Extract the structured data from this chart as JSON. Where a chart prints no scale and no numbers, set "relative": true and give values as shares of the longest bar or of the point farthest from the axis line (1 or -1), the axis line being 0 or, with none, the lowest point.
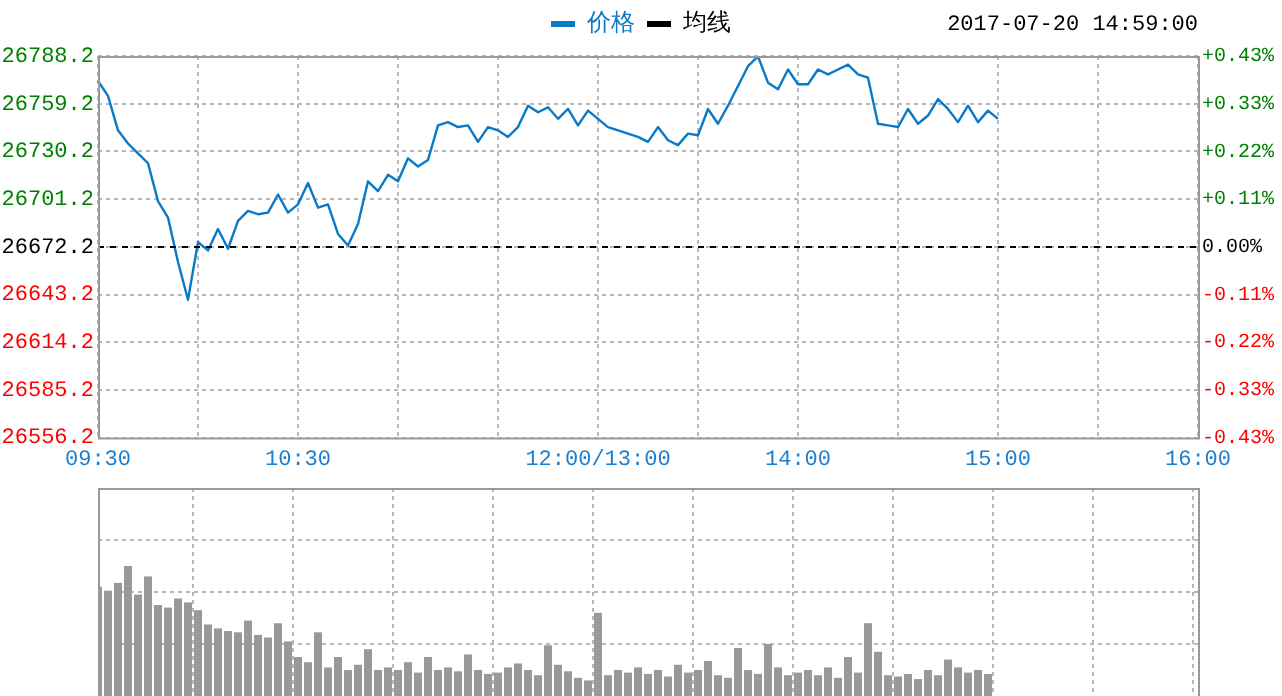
{
  "chart_data": [
    {
      "type": "line",
      "annotations": [
        "2017-07-20 14:59:00"
      ],
      "categories": [
        "09:30",
        null,
        null,
        null,
        null,
        null,
        null,
        null,
        null,
        null,
        null,
        null,
        null,
        null,
        null,
        null,
        null,
        null,
        null,
        null,
        "10:30",
        null,
        null,
        null,
        null,
        null,
        null,
        null,
        null,
        null,
        null,
        null,
        null,
        null,
        null,
        null,
        null,
        null,
        null,
        null,
        null,
        null,
        null,
        null,
        null,
        null,
        null,
        null,
        null,
        null,
        "12:00/13:00",
        null,
        null,
        null,
        null,
        null,
        null,
        null,
        null,
        null,
        null,
        null,
        null,
        null,
        null,
        null,
        null,
        null,
        null,
        null,
        "14:00",
        null,
        null,
        null,
        null,
        null,
        null,
        null,
        null,
        null,
        null,
        null,
        null,
        null,
        null,
        null,
        null,
        null,
        null,
        null,
        "15:00",
        null,
        null,
        null,
        null,
        null,
        null,
        null,
        null,
        null,
        null,
        null,
        null,
        null,
        null,
        null,
        null,
        null,
        null,
        null,
        "16:00"
      ],
      "series": [
        {
          "name": "价格",
          "color": "#0a7ac8",
          "values": [
            26773,
            26764,
            26743,
            26735,
            26729,
            26723,
            26700,
            26690,
            26663,
            26640,
            26675,
            26670,
            26683,
            26671,
            26688,
            26694,
            26692,
            26693,
            26704,
            26693,
            26698,
            26711,
            26696,
            26698,
            26680,
            26673,
            26686,
            26712,
            26706,
            26716,
            26712,
            26726,
            26721,
            26725,
            26746,
            26748,
            26745,
            26746,
            26736,
            26745,
            26743,
            26739,
            26745,
            26758,
            26754,
            26757,
            26750,
            26756,
            26746,
            26755,
            26750,
            26745,
            26743,
            26741,
            26739,
            26736,
            26745,
            26737,
            26734,
            26741,
            26740,
            26756,
            26747,
            26758,
            26770,
            26782,
            26788,
            26772,
            26768,
            26780,
            26771,
            26771,
            26780,
            26777,
            26780,
            26783,
            26777,
            26775,
            26747,
            26746,
            26745,
            26756,
            26747,
            26752,
            26762,
            26756,
            26748,
            26758,
            26748,
            26755,
            26750,
            null,
            null,
            null,
            null,
            null,
            null,
            null,
            null,
            null,
            null,
            null,
            null,
            null,
            null,
            null,
            null,
            null,
            null,
            null,
            null
          ]
        },
        {
          "name": "均线",
          "color": "#000000",
          "values": [
            null,
            null,
            null,
            null,
            null,
            null,
            null,
            null,
            null,
            null,
            null,
            null,
            null,
            null,
            null,
            null,
            null,
            null,
            null,
            null,
            null,
            null,
            null,
            null,
            null,
            null,
            null,
            null,
            null,
            null,
            null,
            null,
            null,
            null,
            null,
            null,
            null,
            null,
            null,
            null,
            null,
            null,
            null,
            null,
            null,
            null,
            null,
            null,
            null,
            null,
            null,
            null,
            null,
            null,
            null,
            null,
            null,
            null,
            null,
            null,
            null,
            null,
            null,
            null,
            null,
            null,
            null,
            null,
            null,
            null,
            null,
            null,
            null,
            null,
            null,
            null,
            null,
            null,
            null,
            null,
            null,
            null,
            null,
            null,
            null,
            null,
            null,
            null,
            null,
            null,
            null,
            null,
            null,
            null,
            null,
            null,
            null,
            null,
            null,
            null,
            null,
            null,
            null,
            null,
            null,
            null,
            null,
            null,
            null,
            null,
            null
          ]
        }
      ],
      "ylim": [
        26556.2,
        26788.2
      ],
      "yticks": [
        26556.2,
        26585.2,
        26614.2,
        26643.2,
        26672.2,
        26701.2,
        26730.2,
        26759.2,
        26788.2
      ],
      "y2lim": [
        -0.435,
        0.435
      ],
      "y2ticks": [
        {
          "value": -0.435,
          "label": "-0.43%"
        },
        {
          "value": -0.326,
          "label": "-0.33%"
        },
        {
          "value": -0.217,
          "label": "-0.22%"
        },
        {
          "value": -0.109,
          "label": "-0.11%"
        },
        {
          "value": 0,
          "label": "0.00%"
        },
        {
          "value": 0.109,
          "label": "+0.11%"
        },
        {
          "value": 0.217,
          "label": "+0.22%"
        },
        {
          "value": 0.326,
          "label": "+0.33%"
        },
        {
          "value": 0.435,
          "label": "+0.43%"
        }
      ],
      "ref_lines": [
        {
          "axis": "y",
          "value": 26672.2,
          "color": "#000000",
          "line_style": "dashed"
        }
      ],
      "grid": true,
      "legend": "top",
      "marker": "none",
      "line_style": "solid"
    },
    {
      "type": "bar",
      "relative": true,
      "color": "#999999",
      "categories": [
        null,
        null,
        null,
        null,
        null,
        null,
        null,
        null,
        null,
        null,
        null,
        null,
        null,
        null,
        null,
        null,
        null,
        null,
        null,
        null,
        null,
        null,
        null,
        null,
        null,
        null,
        null,
        null,
        null,
        null,
        null,
        null,
        null,
        null,
        null,
        null,
        null,
        null,
        null,
        null,
        null,
        null,
        null,
        null,
        null,
        null,
        null,
        null,
        null,
        null,
        null,
        null,
        null,
        null,
        null,
        null,
        null,
        null,
        null,
        null,
        null,
        null,
        null,
        null,
        null,
        null,
        null,
        null,
        null,
        null,
        null,
        null,
        null,
        null,
        null,
        null,
        null,
        null,
        null,
        null,
        null,
        null,
        null,
        null,
        null,
        null,
        null,
        null,
        null,
        null,
        null,
        null,
        null,
        null,
        null,
        null,
        null,
        null,
        null,
        null,
        null,
        null,
        null,
        null,
        null,
        null,
        null,
        null,
        null,
        null,
        null
      ],
      "values": [
        0.84,
        0.81,
        0.87,
        1.0,
        0.78,
        0.92,
        0.7,
        0.68,
        0.75,
        0.72,
        0.66,
        0.55,
        0.52,
        0.5,
        0.49,
        0.58,
        0.47,
        0.45,
        0.56,
        0.42,
        0.3,
        0.26,
        0.49,
        0.22,
        0.3,
        0.2,
        0.24,
        0.36,
        0.2,
        0.22,
        0.2,
        0.26,
        0.18,
        0.3,
        0.2,
        0.22,
        0.19,
        0.32,
        0.2,
        0.17,
        0.18,
        0.22,
        0.25,
        0.2,
        0.16,
        0.39,
        0.24,
        0.19,
        0.14,
        0.12,
        0.64,
        0.16,
        0.2,
        0.18,
        0.22,
        0.17,
        0.2,
        0.15,
        0.24,
        0.18,
        0.2,
        0.27,
        0.16,
        0.14,
        0.37,
        0.2,
        0.17,
        0.4,
        0.22,
        0.16,
        0.18,
        0.2,
        0.16,
        0.22,
        0.14,
        0.3,
        0.18,
        0.56,
        0.34,
        0.16,
        0.15,
        0.17,
        0.13,
        0.2,
        0.16,
        0.28,
        0.22,
        0.18,
        0.2,
        0.17,
        null,
        null,
        null,
        null,
        null,
        null,
        null,
        null,
        null,
        null,
        null,
        null,
        null,
        null,
        null,
        null,
        null,
        null,
        null,
        null,
        null
      ],
      "grid": true,
      "tick_labels": false
    }
  ]
}
